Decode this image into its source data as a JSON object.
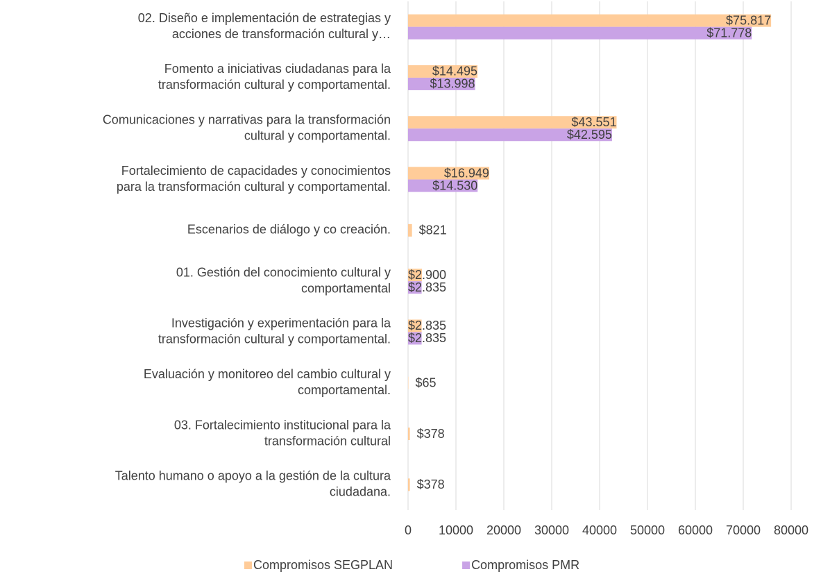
{
  "chart_data": {
    "type": "hbar",
    "categories": [
      [
        "02. Diseño e implementación de estrategias y",
        "acciones de transformación cultural y…"
      ],
      [
        "Fomento a iniciativas ciudadanas para la",
        "transformación cultural y comportamental."
      ],
      [
        "Comunicaciones y narrativas para la transformación",
        "cultural y comportamental."
      ],
      [
        "Fortalecimiento de capacidades y conocimientos",
        "para la transformación cultural y comportamental."
      ],
      [
        "Escenarios de diálogo y co creación."
      ],
      [
        "01. Gestión del conocimiento cultural y",
        "comportamental"
      ],
      [
        "Investigación y experimentación para la",
        "transformación cultural y comportamental."
      ],
      [
        "Evaluación y monitoreo del cambio cultural y",
        "comportamental."
      ],
      [
        "03. Fortalecimiento institucional para la",
        "transformación cultural"
      ],
      [
        "Talento humano o apoyo a la gestión de la cultura",
        "ciudadana."
      ]
    ],
    "series": [
      {
        "name": "Compromisos SEGPLAN",
        "color": "#ffcc99",
        "values": [
          75817,
          14495,
          43551,
          16949,
          821,
          2900,
          2835,
          65,
          378,
          378
        ],
        "value_labels": [
          "$75.817",
          "$14.495",
          "$43.551",
          "$16.949",
          "$821",
          "$2.900",
          "$2.835",
          "$65",
          "$378",
          "$378"
        ]
      },
      {
        "name": "Compromisos PMR",
        "color": "#c9a3e6",
        "values": [
          71778,
          13998,
          42595,
          14530,
          null,
          2835,
          2835,
          null,
          null,
          null
        ],
        "value_labels": [
          "$71.778",
          "$13.998",
          "$42.595",
          "$14.530",
          null,
          "$2.835",
          "$2.835",
          null,
          null,
          null
        ]
      }
    ],
    "xlim": [
      0,
      80000
    ],
    "xticks": [
      0,
      10000,
      20000,
      30000,
      40000,
      50000,
      60000,
      70000,
      80000
    ],
    "grid": true,
    "legend": "bottom"
  }
}
